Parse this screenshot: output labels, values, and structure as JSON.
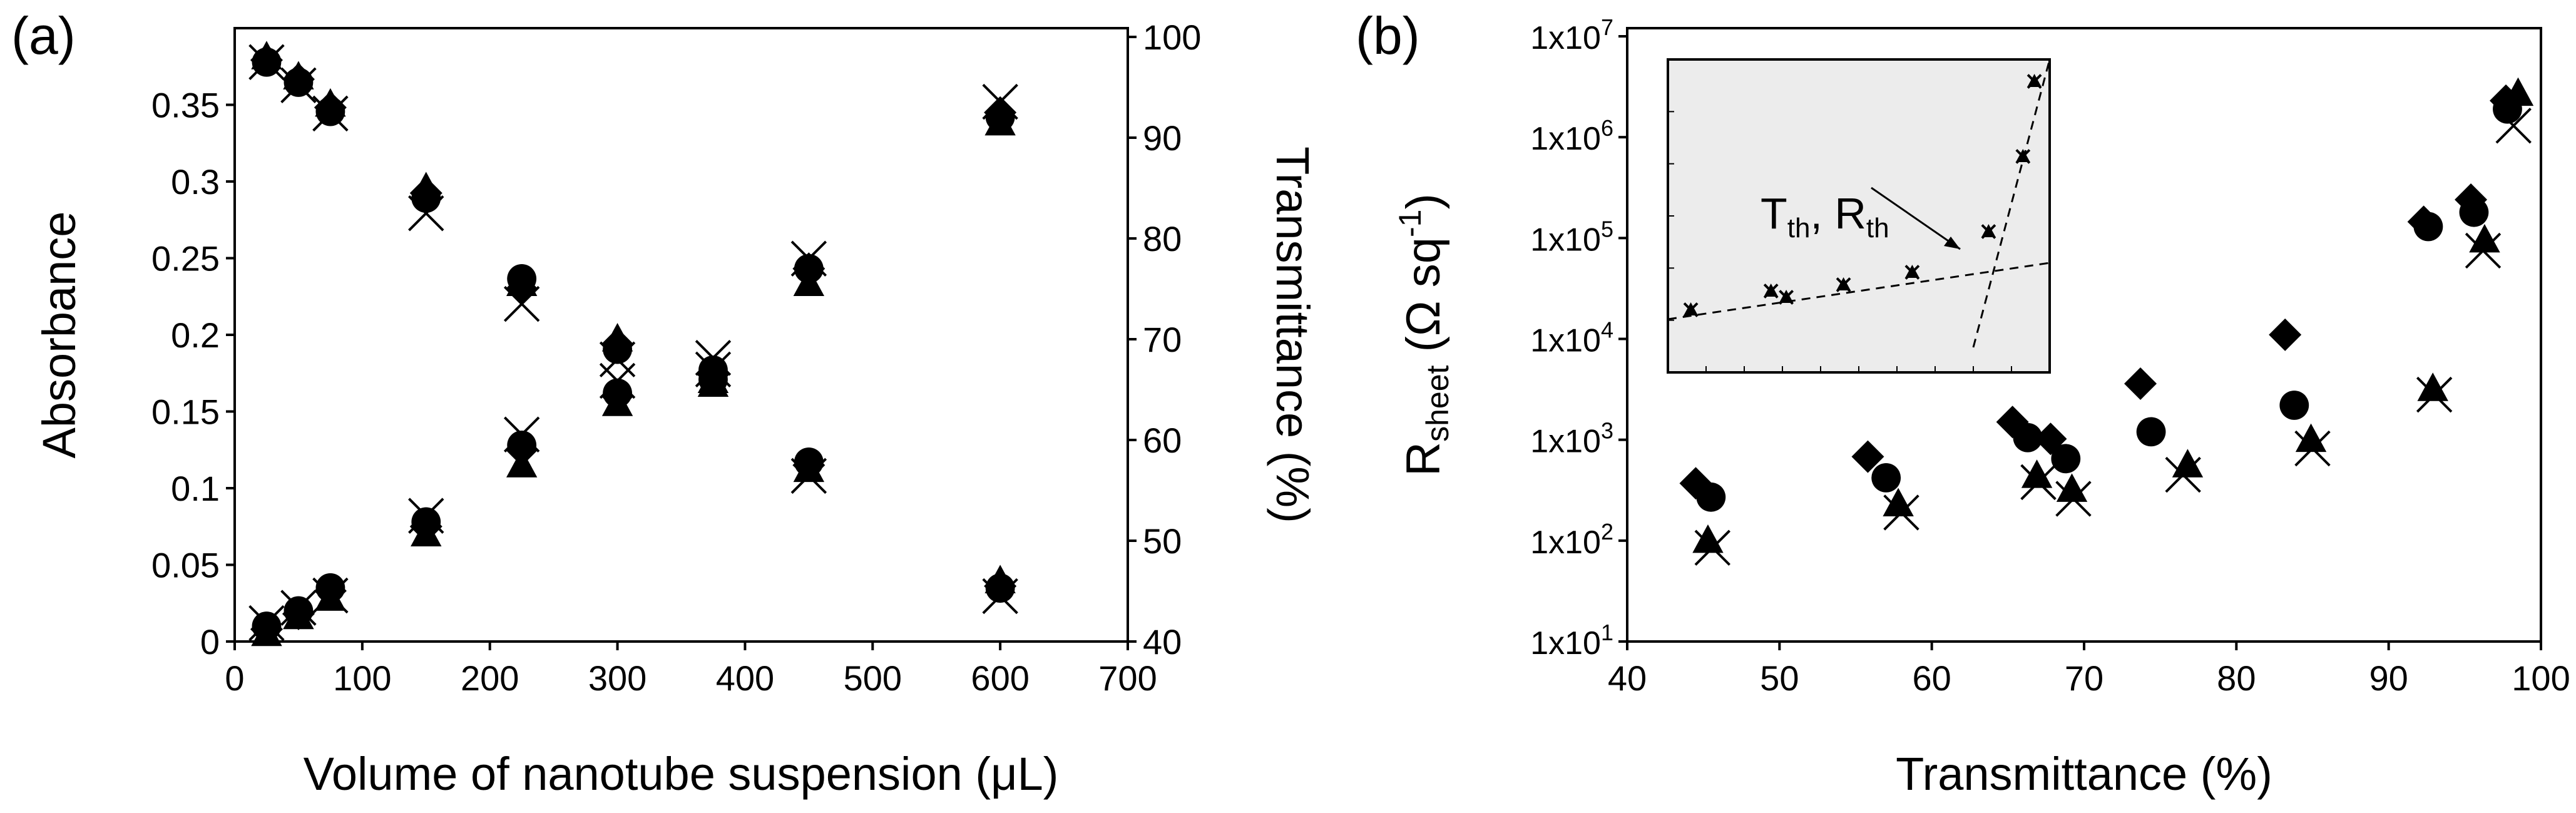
{
  "panels": {
    "a": {
      "label": "(a)",
      "xlabel": "Volume of nanotube suspension (μL)",
      "ylabel_left": "Absorbance",
      "ylabel_right": "Transmittance (%)"
    },
    "b": {
      "label": "(b)",
      "xlabel": "Transmittance (%)",
      "ylabel": "R_sheet (Ω sq^-1)",
      "inset_annotation": "T_th, R_th"
    }
  },
  "chart_data": [
    {
      "type": "scatter",
      "panel": "a",
      "xlabel": "Volume of nanotube suspension (μL)",
      "ylabel": "Absorbance",
      "y2label": "Transmittance (%)",
      "xlim": [
        0,
        700
      ],
      "ylim": [
        0,
        0.4
      ],
      "y2lim": [
        40,
        100
      ],
      "xticks": [
        0,
        100,
        200,
        300,
        400,
        500,
        600,
        700
      ],
      "yticks": [
        0,
        0.05,
        0.1,
        0.15,
        0.2,
        0.25,
        0.3,
        0.35
      ],
      "y2ticks": [
        40,
        50,
        60,
        70,
        80,
        90,
        100
      ],
      "grid": false,
      "marker_styles": [
        "diamond",
        "circle",
        "cross",
        "triangle"
      ],
      "series": [
        {
          "marker": "diamond",
          "axis": "left",
          "x": [
            25,
            50,
            75,
            150,
            225,
            300,
            375,
            450,
            600
          ],
          "y": [
            0.008,
            0.018,
            0.033,
            0.075,
            0.125,
            0.16,
            0.175,
            0.115,
            0.345
          ]
        },
        {
          "marker": "circle",
          "axis": "left",
          "x": [
            25,
            50,
            75,
            150,
            225,
            300,
            375,
            450,
            600
          ],
          "y": [
            0.01,
            0.02,
            0.035,
            0.078,
            0.128,
            0.162,
            0.177,
            0.117,
            0.342
          ]
        },
        {
          "marker": "cross",
          "axis": "left",
          "x": [
            25,
            50,
            75,
            150,
            225,
            300,
            375,
            450,
            600
          ],
          "y": [
            0.012,
            0.022,
            0.03,
            0.082,
            0.135,
            0.17,
            0.185,
            0.108,
            0.352
          ]
        },
        {
          "marker": "triangle",
          "axis": "left",
          "x": [
            25,
            50,
            75,
            150,
            225,
            300,
            375,
            450,
            600
          ],
          "y": [
            0.005,
            0.016,
            0.028,
            0.07,
            0.115,
            0.155,
            0.17,
            0.112,
            0.338
          ]
        },
        {
          "marker": "diamond",
          "axis": "right",
          "x": [
            25,
            50,
            75,
            150,
            225,
            300,
            375,
            450,
            600
          ],
          "y": [
            97.7,
            95.8,
            93.0,
            84.5,
            75.0,
            69.5,
            66.5,
            77.0,
            45.5
          ]
        },
        {
          "marker": "circle",
          "axis": "right",
          "x": [
            25,
            50,
            75,
            150,
            225,
            300,
            375,
            450,
            600
          ],
          "y": [
            97.5,
            95.5,
            92.6,
            84.0,
            76.0,
            69.0,
            66.0,
            77.0,
            45.3
          ]
        },
        {
          "marker": "cross",
          "axis": "right",
          "x": [
            25,
            50,
            75,
            150,
            225,
            300,
            375,
            450,
            600
          ],
          "y": [
            97.5,
            95.2,
            92.4,
            82.5,
            73.5,
            68.0,
            67.0,
            78.0,
            44.5
          ]
        },
        {
          "marker": "triangle",
          "axis": "right",
          "x": [
            25,
            50,
            75,
            150,
            225,
            300,
            375,
            450,
            600
          ],
          "y": [
            98.0,
            96.0,
            93.3,
            85.0,
            75.5,
            70.0,
            65.5,
            75.5,
            46.0
          ]
        }
      ]
    },
    {
      "type": "scatter",
      "panel": "b",
      "xlabel": "Transmittance (%)",
      "ylabel": "R_sheet (Ω sq^-1)",
      "xlim": [
        40,
        100
      ],
      "ylim": [
        10,
        10000000
      ],
      "yscale": "log",
      "xticks": [
        40,
        50,
        60,
        70,
        80,
        90,
        100
      ],
      "yticks": [
        "1x10^1",
        "1x10^2",
        "1x10^3",
        "1x10^4",
        "1x10^5",
        "1x10^6",
        "1x10^7"
      ],
      "grid": false,
      "series": [
        {
          "marker": "diamond",
          "x": [
            44.5,
            55.8,
            65.3,
            67.8,
            73.7,
            83.2,
            92.3,
            95.4,
            97.7
          ],
          "y": [
            370,
            680,
            1500,
            1020,
            3600,
            11000,
            145000,
            240000,
            2300000
          ]
        },
        {
          "marker": "circle",
          "x": [
            45.5,
            57.0,
            66.3,
            68.8,
            74.4,
            83.8,
            92.6,
            95.6,
            97.8
          ],
          "y": [
            270,
            420,
            1050,
            650,
            1200,
            2200,
            130000,
            180000,
            1900000
          ]
        },
        {
          "marker": "cross",
          "x": [
            45.6,
            58.0,
            67.0,
            69.3,
            76.5,
            85.0,
            93.0,
            96.2,
            98.2
          ],
          "y": [
            85,
            190,
            380,
            260,
            450,
            820,
            2800,
            75000,
            1300000
          ]
        },
        {
          "marker": "triangle",
          "x": [
            45.3,
            57.8,
            66.9,
            69.2,
            76.8,
            84.9,
            92.9,
            96.3,
            98.5
          ],
          "y": [
            100,
            230,
            440,
            320,
            560,
            1000,
            3200,
            95000,
            2700000
          ]
        }
      ],
      "inset": {
        "points": [
          [
            0.06,
            0.2
          ],
          [
            0.27,
            0.26
          ],
          [
            0.31,
            0.24
          ],
          [
            0.46,
            0.28
          ],
          [
            0.64,
            0.32
          ],
          [
            0.84,
            0.45
          ],
          [
            0.93,
            0.69
          ],
          [
            0.96,
            0.93
          ]
        ],
        "fit_lines": [
          {
            "from": [
              0.0,
              0.17
            ],
            "to": [
              1.0,
              0.35
            ]
          },
          {
            "from": [
              0.8,
              0.08
            ],
            "to": [
              1.0,
              1.03
            ]
          }
        ],
        "annotation": "T_th, R_th"
      }
    }
  ]
}
